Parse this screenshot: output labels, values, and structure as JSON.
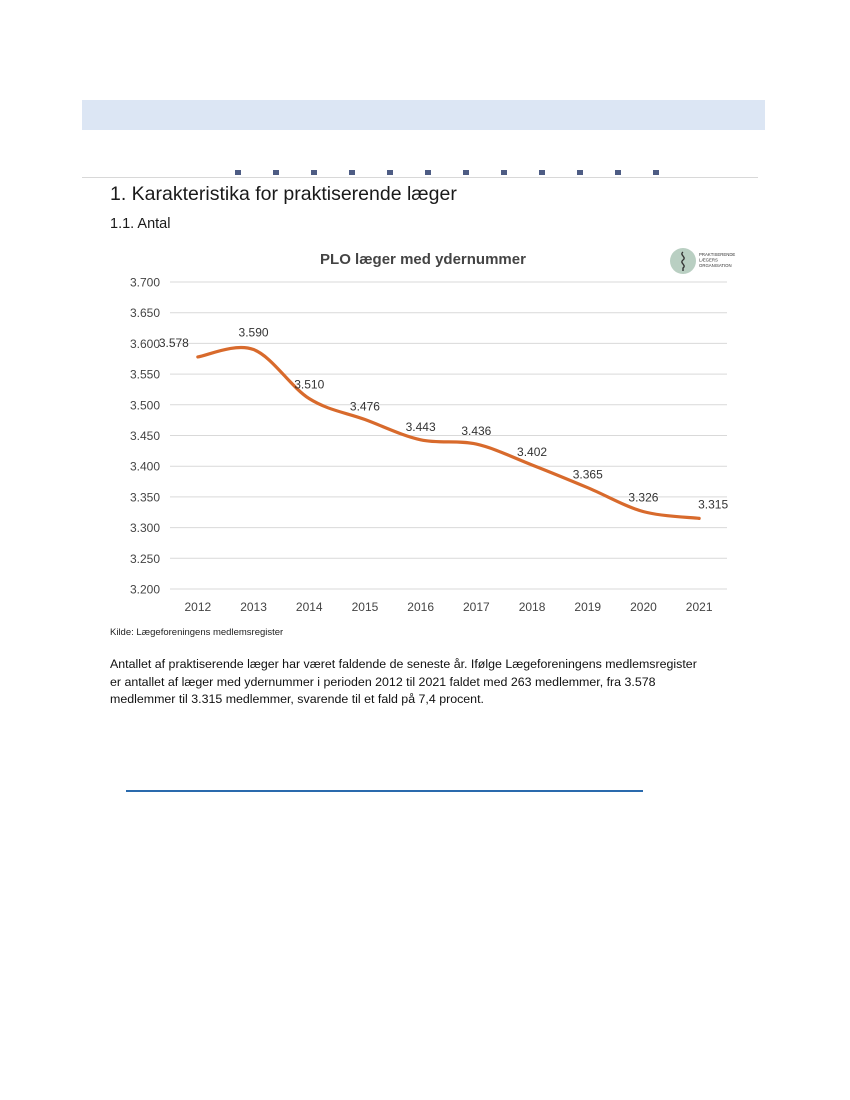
{
  "document": {
    "section_title": "1. Karakteristika for praktiserende læger",
    "subsection_title": "1.1. Antal",
    "source_note": "Kilde: Lægeforeningens medlemsregister",
    "paragraph_lines": [
      "Antallet af praktiserende læger har været faldende de seneste år. Ifølge Lægeforeningens medlemsregister",
      "er antallet af læger med ydernummer i perioden 2012 til 2021 faldet med 263 medlemmer, fra 3.578",
      "medlemmer til 3.315 medlemmer, svarende til et fald på 7,4 procent."
    ]
  },
  "logo": {
    "lines": [
      "PRAKTISERENDE",
      "LÆGERS",
      "ORGANISATION"
    ],
    "icon": "caduceus-icon"
  },
  "chart_data": {
    "type": "line",
    "title": "PLO læger med ydernummer",
    "xlabel": "",
    "ylabel": "",
    "x": [
      "2012",
      "2013",
      "2014",
      "2015",
      "2016",
      "2017",
      "2018",
      "2019",
      "2020",
      "2021"
    ],
    "series": [
      {
        "values": [
          3578,
          3590,
          3510,
          3476,
          3443,
          3436,
          3402,
          3365,
          3326,
          3315
        ],
        "labels": [
          "3.578",
          "3.590",
          "3.510",
          "3.476",
          "3.443",
          "3.436",
          "3.402",
          "3.365",
          "3.326",
          "3.315"
        ],
        "color": "#d86a2c"
      }
    ],
    "ylim": [
      3200,
      3700
    ],
    "yticks": [
      3200,
      3250,
      3300,
      3350,
      3400,
      3450,
      3500,
      3550,
      3600,
      3650,
      3700
    ],
    "ytick_labels": [
      "3.200",
      "3.250",
      "3.300",
      "3.350",
      "3.400",
      "3.450",
      "3.500",
      "3.550",
      "3.600",
      "3.650",
      "3.700"
    ],
    "grid": true,
    "legend": "none",
    "gridline_color": "#d9d9d9"
  }
}
